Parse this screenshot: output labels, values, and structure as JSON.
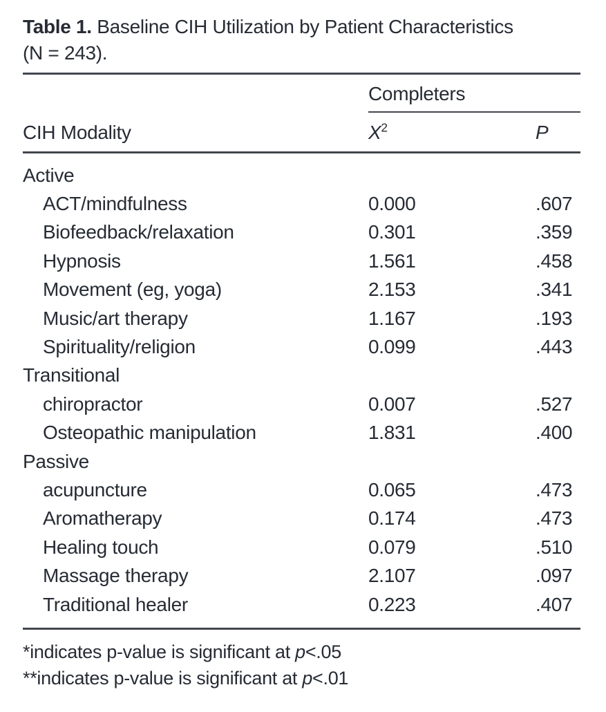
{
  "caption": {
    "label": "Table 1.",
    "line1": " Baseline CIH Utilization by Patient Characteristics",
    "line2": "(N = 243)."
  },
  "header": {
    "group": "Completers",
    "stub": "CIH Modality",
    "chi_base": "X",
    "chi_sup": "2",
    "p": "P"
  },
  "rows": [
    {
      "label": "Active",
      "chi": "",
      "p": ""
    },
    {
      "label": "ACT/mindfulness",
      "chi": "0.000",
      "p": ".607"
    },
    {
      "label": "Biofeedback/relaxation",
      "chi": "0.301",
      "p": ".359"
    },
    {
      "label": "Hypnosis",
      "chi": "1.561",
      "p": ".458"
    },
    {
      "label": "Movement (eg, yoga)",
      "chi": "2.153",
      "p": ".341"
    },
    {
      "label": "Music/art therapy",
      "chi": "1.167",
      "p": ".193"
    },
    {
      "label": "Spirituality/religion",
      "chi": "0.099",
      "p": ".443"
    },
    {
      "label": "Transitional",
      "chi": "",
      "p": ""
    },
    {
      "label": "chiropractor",
      "chi": "0.007",
      "p": ".527"
    },
    {
      "label": "Osteopathic manipulation",
      "chi": "1.831",
      "p": ".400"
    },
    {
      "label": "Passive",
      "chi": "",
      "p": ""
    },
    {
      "label": "acupuncture",
      "chi": "0.065",
      "p": ".473"
    },
    {
      "label": "Aromatherapy",
      "chi": "0.174",
      "p": ".473"
    },
    {
      "label": "Healing touch",
      "chi": "0.079",
      "p": ".510"
    },
    {
      "label": "Massage therapy",
      "chi": "2.107",
      "p": ".097"
    },
    {
      "label": "Traditional healer",
      "chi": "0.223",
      "p": ".407"
    }
  ],
  "footnotes": [
    {
      "pre": "*indicates p-value is significant at ",
      "p_italic": "p",
      "post": "<.05"
    },
    {
      "pre": "**indicates p-value is significant at ",
      "p_italic": "p",
      "post": "<.01"
    }
  ],
  "colors": {
    "text": "#262b34",
    "rule": "#41464d",
    "background": "#ffffff"
  }
}
